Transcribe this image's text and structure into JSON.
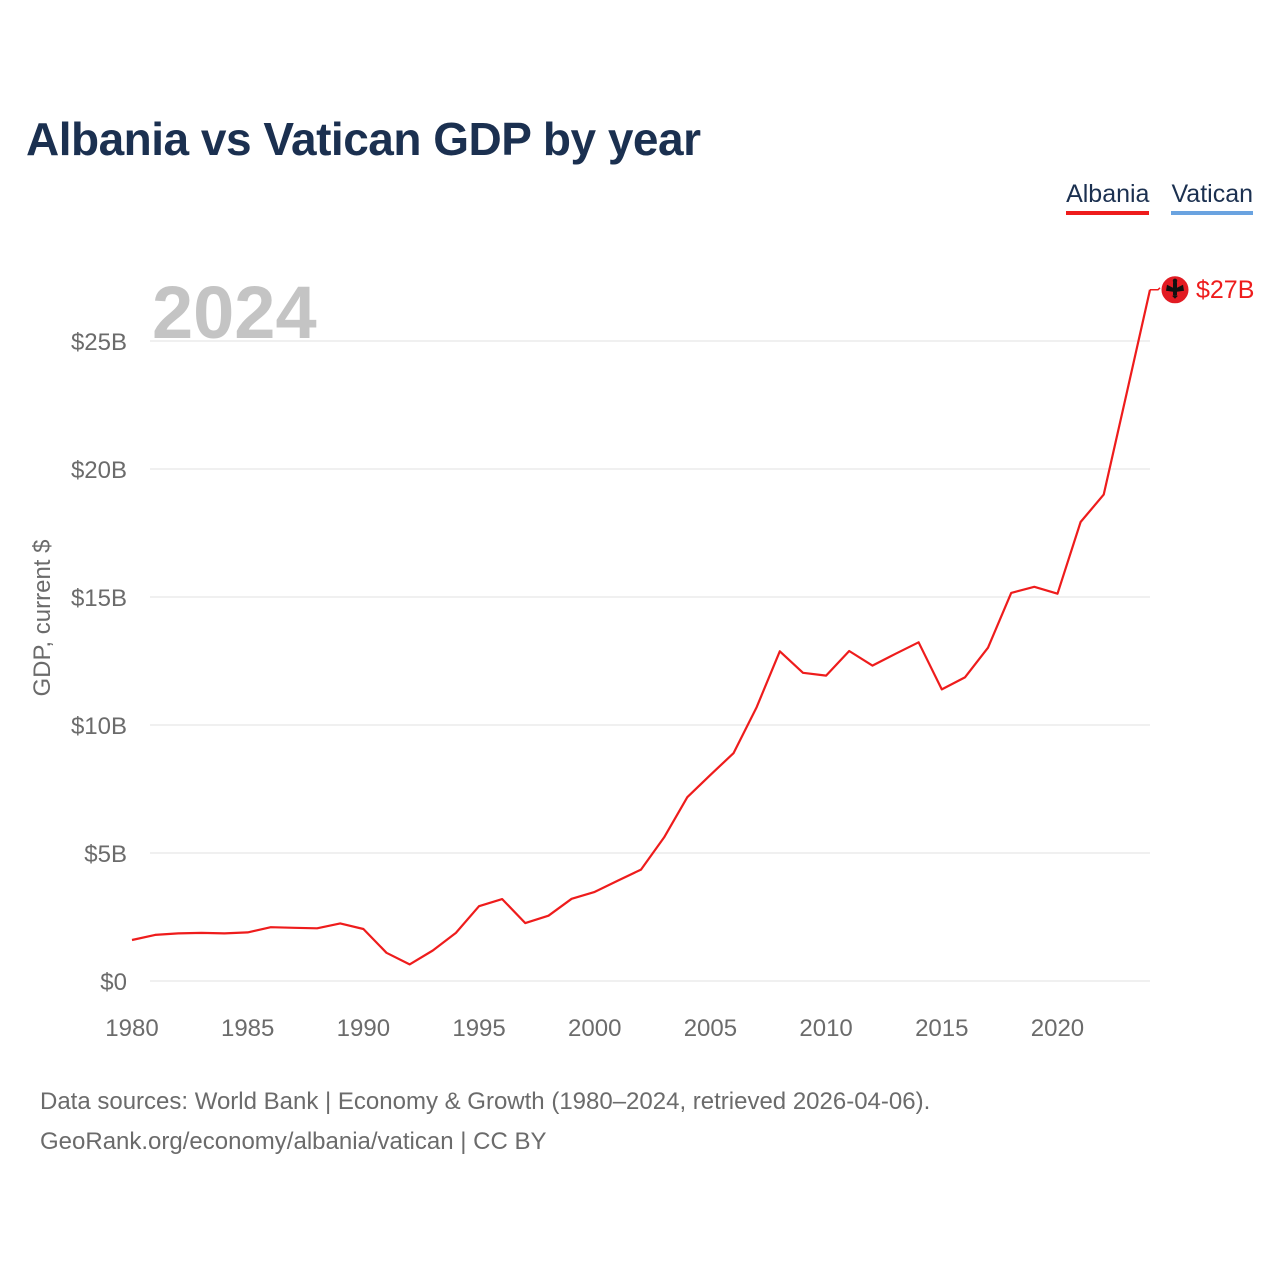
{
  "title": "Albania vs Vatican GDP by year",
  "legend": [
    {
      "label": "Albania",
      "color": "#ee1c1c"
    },
    {
      "label": "Vatican",
      "color": "#6aa3e0"
    }
  ],
  "year_watermark": "2024",
  "end_label": "$27B",
  "flag_icon": "albania-flag-icon",
  "chart_data": {
    "type": "line",
    "title": "Albania vs Vatican GDP by year",
    "xlabel": "",
    "ylabel": "GDP, current $",
    "xlim": [
      1980,
      2024
    ],
    "ylim": [
      0,
      27
    ],
    "yticks": [
      0,
      5,
      10,
      15,
      20,
      25
    ],
    "ytick_labels": [
      "$0",
      "$5B",
      "$10B",
      "$15B",
      "$20B",
      "$25B"
    ],
    "xticks": [
      1980,
      1985,
      1990,
      1995,
      2000,
      2005,
      2010,
      2015,
      2020
    ],
    "xtick_labels": [
      "1980",
      "1985",
      "1990",
      "1995",
      "2000",
      "2005",
      "2010",
      "2015",
      "2020"
    ],
    "grid": true,
    "series": [
      {
        "name": "Albania",
        "color": "#ee1c1c",
        "x": [
          1980,
          1981,
          1982,
          1983,
          1984,
          1985,
          1986,
          1987,
          1988,
          1989,
          1990,
          1991,
          1992,
          1993,
          1994,
          1995,
          1996,
          1997,
          1998,
          1999,
          2000,
          2001,
          2002,
          2003,
          2004,
          2005,
          2006,
          2007,
          2008,
          2009,
          2010,
          2011,
          2012,
          2013,
          2014,
          2015,
          2016,
          2017,
          2018,
          2019,
          2020,
          2021,
          2022,
          2023,
          2024
        ],
        "values": [
          1.6,
          1.8,
          1.86,
          1.88,
          1.86,
          1.9,
          2.1,
          2.08,
          2.06,
          2.25,
          2.03,
          1.1,
          0.65,
          1.19,
          1.88,
          2.92,
          3.2,
          2.26,
          2.55,
          3.21,
          3.48,
          3.92,
          4.35,
          5.61,
          7.18,
          8.05,
          8.9,
          10.7,
          12.88,
          12.04,
          11.93,
          12.89,
          12.32,
          12.78,
          13.23,
          11.39,
          11.86,
          13.02,
          15.16,
          15.4,
          15.13,
          17.93,
          19.0,
          23.0,
          27.0
        ]
      }
    ]
  },
  "source": {
    "line1": "Data sources: World Bank | Economy & Growth (1980–2024, retrieved 2026-04-06).",
    "line2": "GeoRank.org/economy/albania/vatican | CC BY"
  }
}
